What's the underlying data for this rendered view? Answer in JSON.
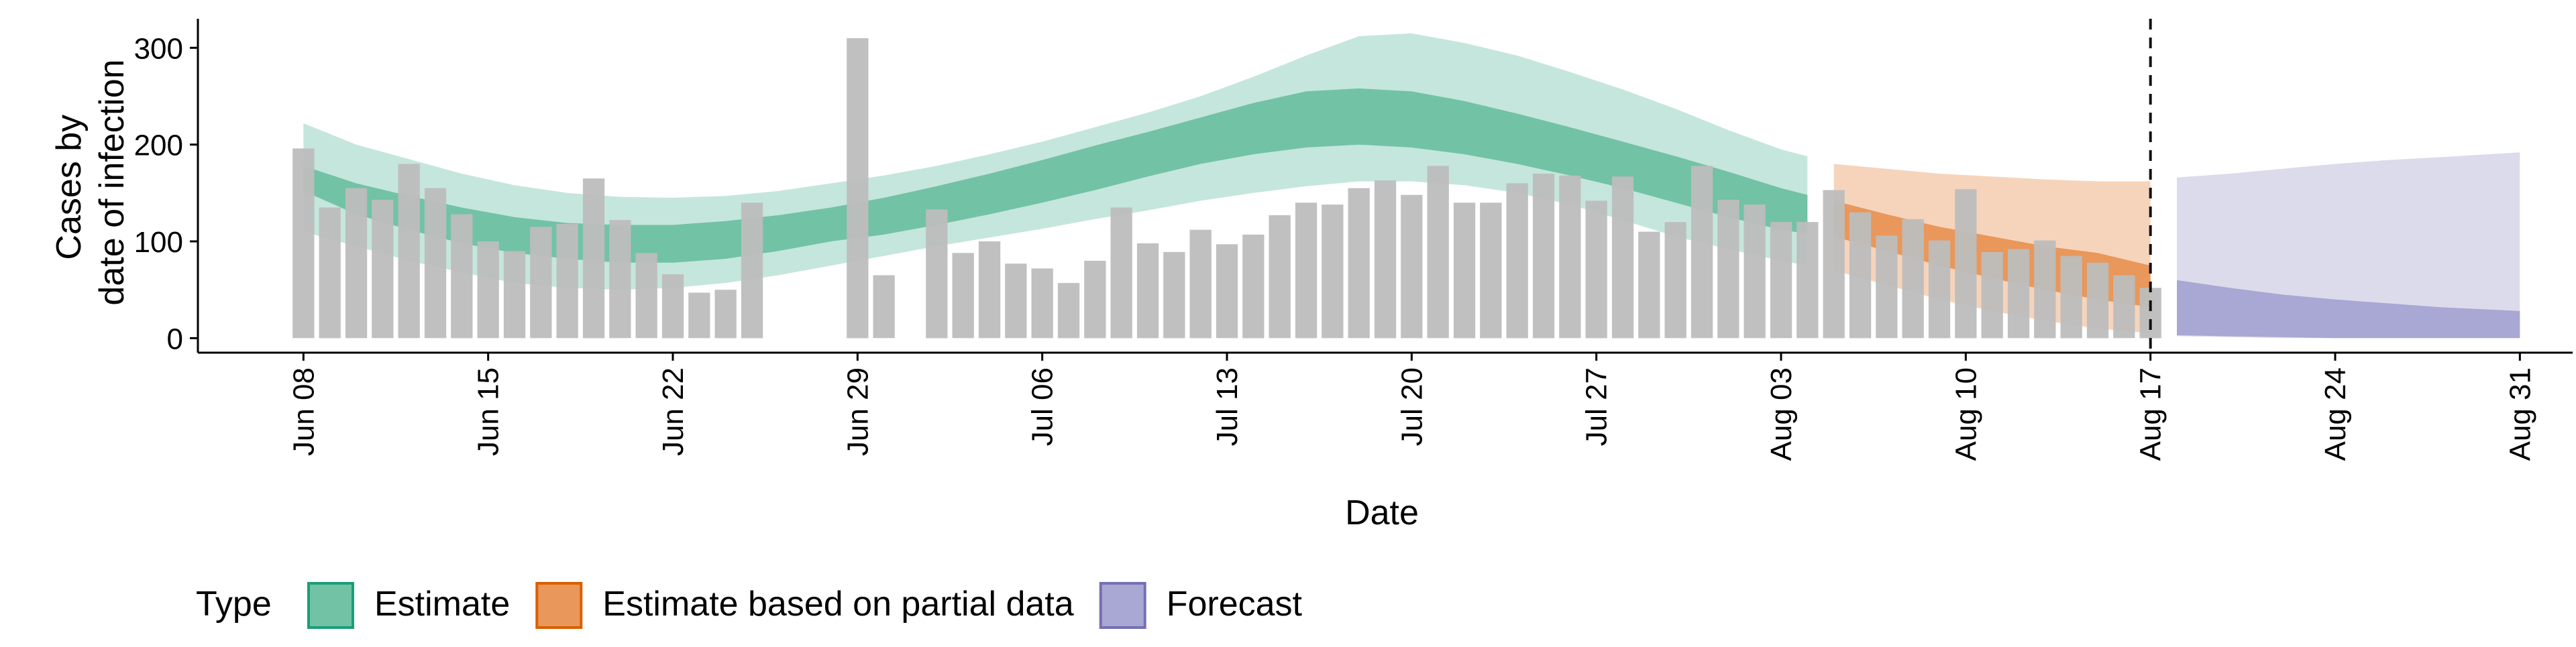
{
  "chart_data": {
    "type": "bar",
    "xlabel": "Date",
    "ylabel_lines": [
      "Cases by",
      "date of infection"
    ],
    "ylim": [
      -15,
      330
    ],
    "y_ticks": [
      0,
      100,
      200,
      300
    ],
    "x_range": [
      "2020-06-04",
      "2020-09-02"
    ],
    "x_ticks": [
      {
        "date": "2020-06-08",
        "label": "Jun 08"
      },
      {
        "date": "2020-06-15",
        "label": "Jun 15"
      },
      {
        "date": "2020-06-22",
        "label": "Jun 22"
      },
      {
        "date": "2020-06-29",
        "label": "Jun 29"
      },
      {
        "date": "2020-07-06",
        "label": "Jul 06"
      },
      {
        "date": "2020-07-13",
        "label": "Jul 13"
      },
      {
        "date": "2020-07-20",
        "label": "Jul 20"
      },
      {
        "date": "2020-07-27",
        "label": "Jul 27"
      },
      {
        "date": "2020-08-03",
        "label": "Aug 03"
      },
      {
        "date": "2020-08-10",
        "label": "Aug 10"
      },
      {
        "date": "2020-08-17",
        "label": "Aug 17"
      },
      {
        "date": "2020-08-24",
        "label": "Aug 24"
      },
      {
        "date": "2020-08-31",
        "label": "Aug 31"
      }
    ],
    "forecast_date": "2020-08-17",
    "grid": false,
    "legend": {
      "position": "bottom",
      "title": "Type",
      "items": [
        {
          "label": "Estimate",
          "fill": "#72c2a6",
          "stroke": "#1b9e77"
        },
        {
          "label": "Estimate based on partial data",
          "fill": "#e9975a",
          "stroke": "#d95f02"
        },
        {
          "label": "Forecast",
          "fill": "#a9a7d3",
          "stroke": "#7570b3"
        }
      ]
    },
    "observed_cases": {
      "color": "#bdbdbd",
      "points": [
        [
          "2020-06-08",
          196
        ],
        [
          "2020-06-09",
          135
        ],
        [
          "2020-06-10",
          155
        ],
        [
          "2020-06-11",
          143
        ],
        [
          "2020-06-12",
          180
        ],
        [
          "2020-06-13",
          155
        ],
        [
          "2020-06-14",
          128
        ],
        [
          "2020-06-15",
          100
        ],
        [
          "2020-06-16",
          90
        ],
        [
          "2020-06-17",
          115
        ],
        [
          "2020-06-18",
          118
        ],
        [
          "2020-06-19",
          165
        ],
        [
          "2020-06-20",
          122
        ],
        [
          "2020-06-21",
          88
        ],
        [
          "2020-06-22",
          66
        ],
        [
          "2020-06-23",
          47
        ],
        [
          "2020-06-24",
          50
        ],
        [
          "2020-06-25",
          140
        ],
        [
          "2020-06-29",
          310
        ],
        [
          "2020-06-30",
          65
        ],
        [
          "2020-07-02",
          133
        ],
        [
          "2020-07-03",
          88
        ],
        [
          "2020-07-04",
          100
        ],
        [
          "2020-07-05",
          77
        ],
        [
          "2020-07-06",
          72
        ],
        [
          "2020-07-07",
          57
        ],
        [
          "2020-07-08",
          80
        ],
        [
          "2020-07-09",
          135
        ],
        [
          "2020-07-10",
          98
        ],
        [
          "2020-07-11",
          89
        ],
        [
          "2020-07-12",
          112
        ],
        [
          "2020-07-13",
          97
        ],
        [
          "2020-07-14",
          107
        ],
        [
          "2020-07-15",
          127
        ],
        [
          "2020-07-16",
          140
        ],
        [
          "2020-07-17",
          138
        ],
        [
          "2020-07-18",
          155
        ],
        [
          "2020-07-19",
          163
        ],
        [
          "2020-07-20",
          148
        ],
        [
          "2020-07-21",
          178
        ],
        [
          "2020-07-22",
          140
        ],
        [
          "2020-07-23",
          140
        ],
        [
          "2020-07-24",
          160
        ],
        [
          "2020-07-25",
          170
        ],
        [
          "2020-07-26",
          168
        ],
        [
          "2020-07-27",
          142
        ],
        [
          "2020-07-28",
          167
        ],
        [
          "2020-07-29",
          110
        ],
        [
          "2020-07-30",
          120
        ],
        [
          "2020-07-31",
          178
        ],
        [
          "2020-08-01",
          143
        ],
        [
          "2020-08-02",
          138
        ],
        [
          "2020-08-03",
          120
        ],
        [
          "2020-08-04",
          120
        ],
        [
          "2020-08-05",
          153
        ],
        [
          "2020-08-06",
          130
        ],
        [
          "2020-08-07",
          106
        ],
        [
          "2020-08-08",
          123
        ],
        [
          "2020-08-09",
          101
        ],
        [
          "2020-08-10",
          154
        ],
        [
          "2020-08-11",
          89
        ],
        [
          "2020-08-12",
          92
        ],
        [
          "2020-08-13",
          101
        ],
        [
          "2020-08-14",
          85
        ],
        [
          "2020-08-15",
          78
        ],
        [
          "2020-08-16",
          65
        ],
        [
          "2020-08-17",
          52
        ]
      ]
    },
    "series": [
      {
        "name": "Estimate",
        "outer_fill": "#c5e6dc",
        "inner_fill": "#72c2a6",
        "dates": [
          "2020-06-08",
          "2020-06-10",
          "2020-06-12",
          "2020-06-14",
          "2020-06-16",
          "2020-06-18",
          "2020-06-20",
          "2020-06-22",
          "2020-06-24",
          "2020-06-26",
          "2020-06-28",
          "2020-06-30",
          "2020-07-02",
          "2020-07-04",
          "2020-07-06",
          "2020-07-08",
          "2020-07-10",
          "2020-07-12",
          "2020-07-14",
          "2020-07-16",
          "2020-07-18",
          "2020-07-20",
          "2020-07-22",
          "2020-07-24",
          "2020-07-26",
          "2020-07-28",
          "2020-07-30",
          "2020-08-01",
          "2020-08-03",
          "2020-08-04"
        ],
        "outer_upper": [
          222,
          200,
          185,
          170,
          158,
          150,
          146,
          145,
          147,
          152,
          160,
          168,
          178,
          190,
          203,
          218,
          233,
          250,
          270,
          292,
          312,
          315,
          305,
          292,
          275,
          257,
          237,
          215,
          195,
          188
        ],
        "outer_lower": [
          110,
          95,
          80,
          68,
          57,
          52,
          50,
          52,
          57,
          65,
          75,
          85,
          95,
          104,
          113,
          123,
          132,
          142,
          150,
          157,
          162,
          162,
          158,
          150,
          138,
          122,
          105,
          92,
          80,
          75
        ],
        "inner_upper": [
          178,
          160,
          147,
          135,
          125,
          119,
          117,
          117,
          121,
          127,
          135,
          145,
          157,
          170,
          184,
          199,
          213,
          228,
          243,
          255,
          258,
          255,
          245,
          232,
          218,
          203,
          188,
          172,
          155,
          148
        ],
        "inner_lower": [
          152,
          128,
          112,
          98,
          88,
          82,
          78,
          78,
          82,
          90,
          100,
          107,
          117,
          128,
          140,
          153,
          167,
          180,
          190,
          197,
          200,
          197,
          190,
          180,
          168,
          155,
          140,
          125,
          112,
          108
        ]
      },
      {
        "name": "Estimate based on partial data",
        "outer_fill": "#f6d4bb",
        "inner_fill": "#e9975a",
        "dates": [
          "2020-08-05",
          "2020-08-07",
          "2020-08-09",
          "2020-08-11",
          "2020-08-13",
          "2020-08-15",
          "2020-08-17"
        ],
        "outer_upper": [
          180,
          175,
          170,
          167,
          164,
          162,
          162
        ],
        "outer_lower": [
          70,
          55,
          40,
          28,
          18,
          10,
          5
        ],
        "inner_upper": [
          142,
          128,
          115,
          105,
          95,
          88,
          75
        ],
        "inner_lower": [
          105,
          90,
          75,
          62,
          50,
          40,
          32
        ]
      },
      {
        "name": "Forecast",
        "outer_fill": "#dcdbec",
        "inner_fill": "#a9a7d3",
        "dates": [
          "2020-08-18",
          "2020-08-20",
          "2020-08-22",
          "2020-08-24",
          "2020-08-26",
          "2020-08-28",
          "2020-08-31"
        ],
        "outer_upper": [
          166,
          170,
          175,
          180,
          184,
          187,
          192
        ],
        "outer_lower": [
          2,
          1,
          0,
          0,
          0,
          0,
          0
        ],
        "inner_upper": [
          60,
          52,
          45,
          40,
          36,
          32,
          28
        ],
        "inner_lower": [
          3,
          2,
          1,
          0,
          0,
          0,
          0
        ]
      }
    ]
  }
}
